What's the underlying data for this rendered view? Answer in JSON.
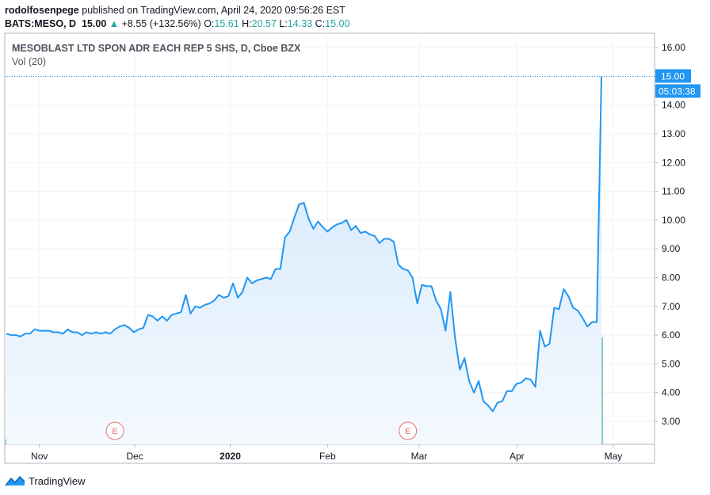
{
  "header": {
    "author": "rodolfosenpege",
    "published_text": "published on TradingView.com, April 24, 2020 09:56:26 EST",
    "symbol": "BATS:MESO, D",
    "last": "15.00",
    "change": "+8.55 (+132.56%)",
    "o_label": "O:",
    "o": "15.61",
    "h_label": "H:",
    "h": "20.57",
    "l_label": "L:",
    "l": "14.33",
    "c_label": "C:",
    "c": "15.00"
  },
  "legend": {
    "title": "MESOBLAST LTD SPON ADR EACH REP 5 SHS, D, Cboe BZX",
    "volume": "Vol (20)"
  },
  "price_label": "15.00",
  "countdown": "05:03:38",
  "earnings_marker": "E",
  "brand": "TradingView",
  "colors": {
    "line": "#2196f3",
    "area_top": "#cfe6fb",
    "area_bottom": "#f4f9fe",
    "vol_up": "#80cbc4",
    "vol_down": "#ef9a9a",
    "earnings": "#e57373"
  },
  "chart_data": {
    "type": "area",
    "title": "MESOBLAST LTD SPON ADR EACH REP 5 SHS, D, Cboe BZX",
    "xlabel": "",
    "ylabel": "",
    "ylim": [
      2.2,
      16.5
    ],
    "yticks": [
      3,
      4,
      5,
      6,
      7,
      8,
      9,
      10,
      11,
      12,
      13,
      14,
      16
    ],
    "ytick_labels": [
      "3.00",
      "4.00",
      "5.00",
      "6.00",
      "7.00",
      "8.00",
      "9.00",
      "10.00",
      "11.00",
      "12.00",
      "13.00",
      "14.00",
      "16.00"
    ],
    "x_range": [
      0,
      139
    ],
    "xticks": [
      {
        "label": "Nov",
        "x": 7
      },
      {
        "label": "Dec",
        "x": 27.2
      },
      {
        "label": "2020",
        "x": 47.4
      },
      {
        "label": "Feb",
        "x": 68
      },
      {
        "label": "Mar",
        "x": 87.4
      },
      {
        "label": "Apr",
        "x": 108.1
      },
      {
        "label": "May",
        "x": 128.5
      }
    ],
    "series": [
      {
        "name": "Close",
        "values": [
          6.05,
          6.0,
          6.0,
          5.95,
          6.05,
          6.05,
          6.2,
          6.15,
          6.15,
          6.15,
          6.1,
          6.1,
          6.05,
          6.2,
          6.1,
          6.1,
          6.0,
          6.1,
          6.05,
          6.1,
          6.05,
          6.1,
          6.05,
          6.2,
          6.3,
          6.35,
          6.25,
          6.1,
          6.2,
          6.25,
          6.7,
          6.65,
          6.5,
          6.65,
          6.5,
          6.7,
          6.75,
          6.8,
          7.4,
          6.75,
          7.0,
          6.95,
          7.05,
          7.1,
          7.2,
          7.4,
          7.3,
          7.35,
          7.8,
          7.3,
          7.5,
          8.0,
          7.8,
          7.9,
          7.95,
          8.0,
          7.95,
          8.3,
          8.3,
          9.4,
          9.6,
          10.1,
          10.55,
          10.6,
          10.05,
          9.7,
          9.95,
          9.75,
          9.6,
          9.75,
          9.85,
          9.9,
          10.0,
          9.65,
          9.8,
          9.55,
          9.6,
          9.5,
          9.45,
          9.2,
          9.35,
          9.35,
          9.25,
          8.45,
          8.3,
          8.25,
          8.0,
          7.1,
          7.75,
          7.7,
          7.7,
          7.2,
          6.9,
          6.15,
          7.5,
          5.9,
          4.8,
          5.2,
          4.4,
          4.0,
          4.4,
          3.7,
          3.55,
          3.35,
          3.65,
          3.7,
          4.05,
          4.05,
          4.3,
          4.35,
          4.5,
          4.45,
          4.2,
          6.15,
          5.6,
          5.7,
          6.95,
          6.9,
          7.6,
          7.35,
          6.95,
          6.85,
          6.6,
          6.3,
          6.45,
          6.45,
          15.0
        ]
      },
      {
        "name": "Volume",
        "values": [
          1,
          1,
          1,
          1,
          1,
          1,
          1,
          1,
          1,
          1,
          1,
          1,
          1,
          1,
          1,
          1,
          1,
          1,
          1,
          1,
          1,
          1,
          1,
          1,
          1,
          1,
          1,
          1,
          1,
          1,
          1,
          1,
          1,
          1,
          1,
          1,
          1,
          1,
          1,
          1,
          1,
          1,
          1,
          1,
          1,
          1,
          1,
          1,
          1,
          1,
          1,
          1,
          1,
          1,
          1,
          1,
          1,
          1,
          1,
          1,
          1,
          1,
          1,
          1,
          1,
          1,
          1,
          1,
          1,
          1,
          1,
          1,
          1,
          1,
          1,
          1,
          1,
          1,
          1,
          1,
          1,
          1,
          1,
          1,
          1,
          1,
          1,
          1,
          1,
          1,
          1,
          1,
          1,
          1,
          1,
          1,
          1,
          1,
          1,
          1,
          1,
          1,
          1,
          1,
          1,
          1,
          1,
          1,
          1,
          1,
          1,
          1,
          1,
          1,
          1,
          1,
          1,
          1,
          1,
          1,
          1,
          1,
          1,
          1,
          1,
          1,
          21
        ]
      }
    ],
    "volume_direction": "down/up per bar (teal = up, red = down)",
    "annotations": [
      {
        "label": "E",
        "x": 23
      },
      {
        "label": "E",
        "x": 85
      }
    ]
  }
}
